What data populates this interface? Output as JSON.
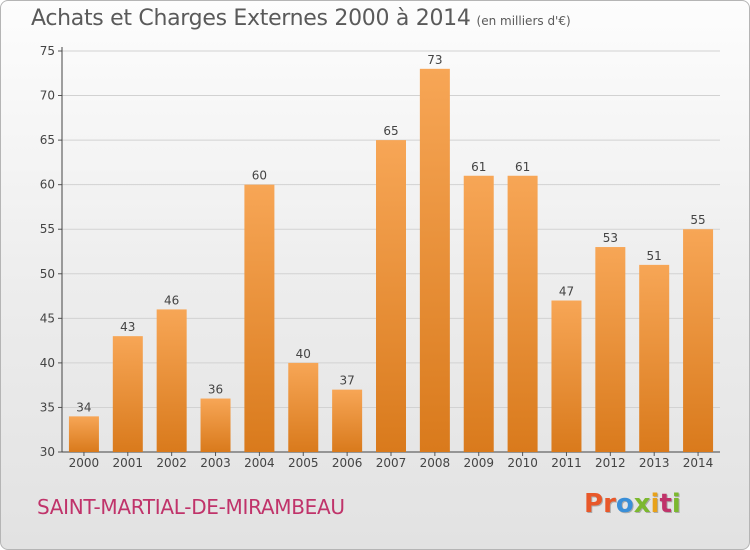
{
  "header": {
    "title": "Achats et Charges Externes 2000 à 2014",
    "subtitle": "(en milliers d'€)"
  },
  "footer": {
    "commune": "SAINT-MARTIAL-DE-MIRAMBEAU",
    "logo_text": "Proxiti",
    "logo_colors": [
      "#e8582a",
      "#e8582a",
      "#3a8fd8",
      "#7cb82f",
      "#e8a21a",
      "#c0336a",
      "#7cb82f"
    ]
  },
  "colors": {
    "bar_top": "#f7a656",
    "bar_bottom": "#d97a1c",
    "title": "#5a5a5a",
    "commune": "#c0336a"
  },
  "chart_data": {
    "type": "bar",
    "categories": [
      "2000",
      "2001",
      "2002",
      "2003",
      "2004",
      "2005",
      "2006",
      "2007",
      "2008",
      "2009",
      "2010",
      "2011",
      "2012",
      "2013",
      "2014"
    ],
    "values": [
      34,
      43,
      46,
      36,
      60,
      40,
      37,
      65,
      73,
      61,
      61,
      47,
      53,
      51,
      55
    ],
    "title": "Achats et Charges Externes 2000 à 2014",
    "ylim": [
      30,
      75
    ],
    "yticks": [
      30,
      35,
      40,
      45,
      50,
      55,
      60,
      65,
      70,
      75
    ],
    "grid": true
  }
}
